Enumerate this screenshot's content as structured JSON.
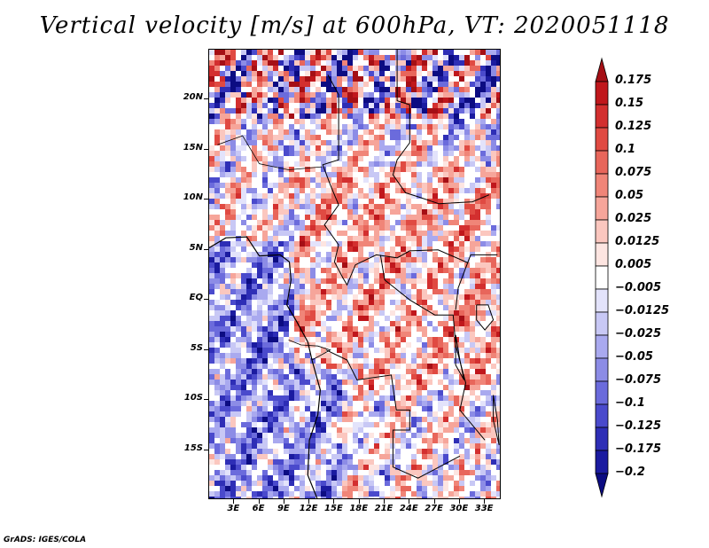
{
  "title": "Vertical velocity [m/s] at 600hPa, VT: 2020051118",
  "footer": "GrADS: IGES/COLA",
  "map": {
    "lat_labels": [
      "20N",
      "15N",
      "10N",
      "5N",
      "EQ",
      "5S",
      "10S",
      "15S"
    ],
    "lat_values": [
      20,
      15,
      10,
      5,
      0,
      -5,
      -10,
      -15
    ],
    "lon_labels": [
      "3E",
      "6E",
      "9E",
      "12E",
      "15E",
      "18E",
      "21E",
      "24E",
      "27E",
      "30E",
      "33E"
    ],
    "lon_values": [
      3,
      6,
      9,
      12,
      15,
      18,
      21,
      24,
      27,
      30,
      33
    ],
    "lat_range": [
      -20,
      25
    ],
    "lon_range": [
      0,
      35
    ]
  },
  "colorbar": {
    "labels": [
      "0.175",
      "0.15",
      "0.125",
      "0.1",
      "0.075",
      "0.05",
      "0.025",
      "0.0125",
      "0.005",
      "−0.005",
      "−0.0125",
      "−0.025",
      "−0.05",
      "−0.075",
      "−0.1",
      "−0.125",
      "−0.175",
      "−0.2"
    ],
    "colors": [
      "#a50f15",
      "#c0171c",
      "#d32f2f",
      "#e04a42",
      "#e8665b",
      "#f08578",
      "#f6a59a",
      "#fbc7bf",
      "#fde5e1",
      "#ffffff",
      "#e3e3fb",
      "#c8c8f5",
      "#a9a9ef",
      "#8c8ce6",
      "#6b6bdc",
      "#4a4acc",
      "#2e2eb6",
      "#1b1ba0",
      "#0c0c82"
    ]
  }
}
